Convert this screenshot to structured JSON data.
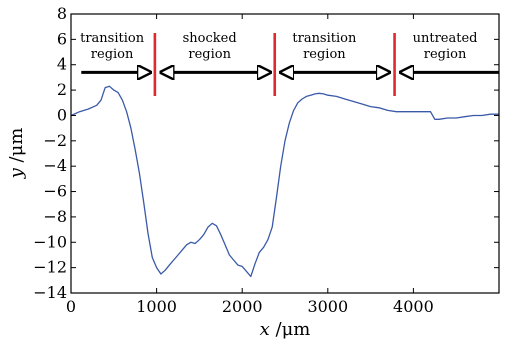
{
  "chart_data": {
    "type": "line",
    "title": "",
    "xlabel_var": "x",
    "xlabel_unit": " /μm",
    "ylabel_var": "y",
    "ylabel_unit": " /μm",
    "xlim": [
      0,
      5000
    ],
    "ylim": [
      -14,
      8
    ],
    "xticks": [
      0,
      1000,
      2000,
      3000,
      4000
    ],
    "yticks": [
      8,
      6,
      4,
      2,
      0,
      -2,
      -4,
      -6,
      -8,
      -10,
      -12,
      -14
    ],
    "grid": false,
    "series": [
      {
        "color": "#3a5aa8",
        "x": [
          0,
          100,
          200,
          300,
          350,
          380,
          400,
          450,
          500,
          550,
          600,
          650,
          700,
          750,
          800,
          850,
          900,
          950,
          1000,
          1050,
          1100,
          1150,
          1200,
          1250,
          1300,
          1350,
          1400,
          1450,
          1500,
          1550,
          1600,
          1650,
          1700,
          1750,
          1800,
          1850,
          1900,
          1950,
          2000,
          2050,
          2100,
          2150,
          2200,
          2250,
          2300,
          2350,
          2400,
          2450,
          2500,
          2550,
          2600,
          2650,
          2700,
          2750,
          2800,
          2850,
          2900,
          2950,
          3000,
          3100,
          3200,
          3300,
          3400,
          3500,
          3600,
          3700,
          3800,
          3900,
          4000,
          4100,
          4200,
          4250,
          4300,
          4400,
          4500,
          4600,
          4700,
          4800,
          4900,
          5000
        ],
        "y": [
          0.0,
          0.3,
          0.5,
          0.8,
          1.2,
          1.8,
          2.2,
          2.3,
          2.0,
          1.8,
          1.2,
          0.3,
          -1.0,
          -2.7,
          -4.6,
          -6.9,
          -9.3,
          -11.2,
          -12.0,
          -12.5,
          -12.2,
          -11.8,
          -11.4,
          -11.0,
          -10.6,
          -10.2,
          -10.0,
          -10.1,
          -9.8,
          -9.4,
          -8.8,
          -8.5,
          -8.7,
          -9.4,
          -10.2,
          -11.0,
          -11.4,
          -11.8,
          -11.9,
          -12.3,
          -12.7,
          -11.7,
          -10.8,
          -10.4,
          -9.8,
          -8.8,
          -6.5,
          -4.0,
          -2.0,
          -0.6,
          0.4,
          1.0,
          1.3,
          1.5,
          1.6,
          1.7,
          1.75,
          1.7,
          1.6,
          1.5,
          1.3,
          1.1,
          0.9,
          0.7,
          0.6,
          0.4,
          0.3,
          0.3,
          0.3,
          0.3,
          0.3,
          -0.3,
          -0.3,
          -0.2,
          -0.2,
          -0.1,
          0.0,
          0.0,
          0.1,
          0.1
        ]
      }
    ],
    "annotations": {
      "region_labels": [
        {
          "line1": "transition",
          "line2": "region",
          "xc": 480
        },
        {
          "line1": "shocked",
          "line2": "region",
          "xc": 1620
        },
        {
          "line1": "transition",
          "line2": "region",
          "xc": 2960
        },
        {
          "line1": "untreated",
          "line2": "region",
          "xc": 4370
        }
      ],
      "boundaries": [
        980,
        2380,
        3780
      ],
      "boundary_color": "#e0282f",
      "arrows": [
        {
          "from": 120,
          "to": 930,
          "y": 3.4,
          "head": "end"
        },
        {
          "from": 1050,
          "to": 2330,
          "y": 3.4,
          "head": "both"
        },
        {
          "from": 2450,
          "to": 3720,
          "y": 3.4,
          "head": "both"
        },
        {
          "from": 3850,
          "to": 5000,
          "y": 3.4,
          "head": "start"
        }
      ]
    }
  }
}
